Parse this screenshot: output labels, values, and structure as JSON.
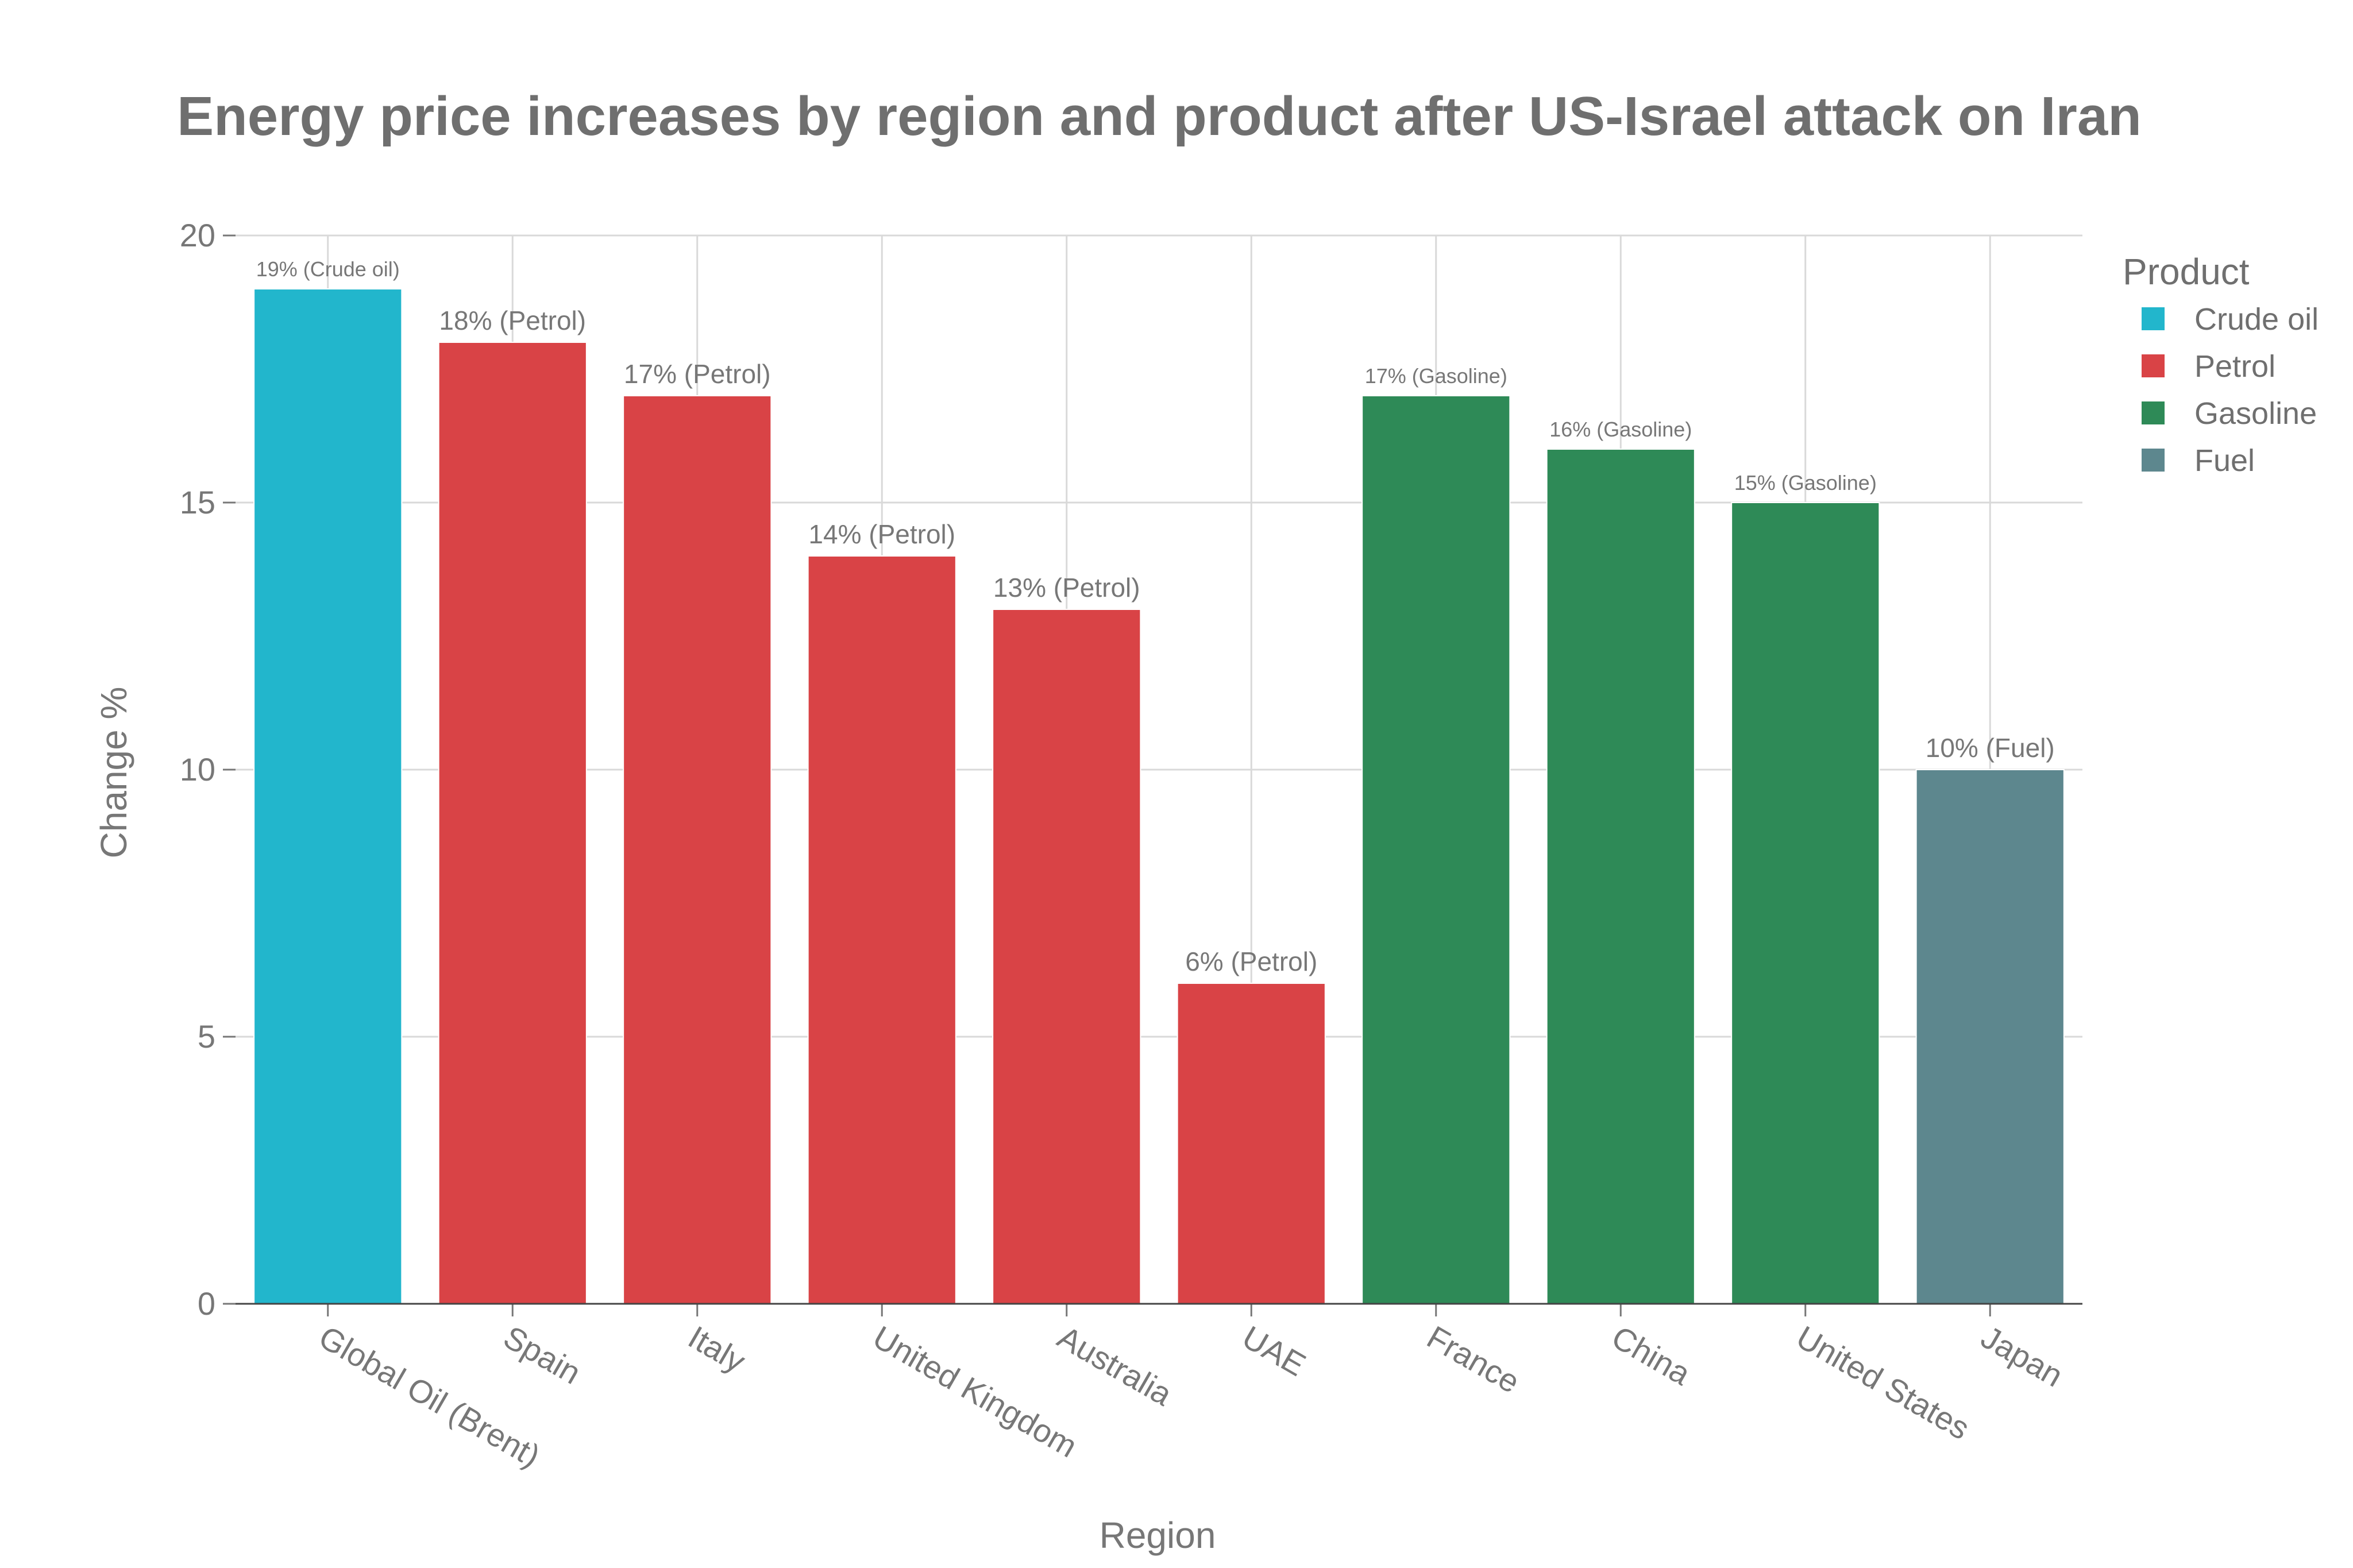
{
  "chart_data": {
    "type": "bar",
    "title": "Energy price increases by region and product after US-Israel attack on Iran",
    "xlabel": "Region",
    "ylabel": "Change %",
    "ylim": [
      0,
      20
    ],
    "yticks": [
      0,
      5,
      10,
      15,
      20
    ],
    "grid": true,
    "legend": {
      "title": "Product",
      "placement": "top-right",
      "entries": [
        {
          "name": "Crude oil",
          "color": "#22b6cc"
        },
        {
          "name": "Petrol",
          "color": "#d94346"
        },
        {
          "name": "Gasoline",
          "color": "#2e8a57"
        },
        {
          "name": "Fuel",
          "color": "#5d878e"
        }
      ]
    },
    "bars": [
      {
        "category": "Global Oil (Brent)",
        "value": 19,
        "product": "Crude oil",
        "label": "19% (Crude oil)",
        "label_size": "sm"
      },
      {
        "category": "Spain",
        "value": 18,
        "product": "Petrol",
        "label": "18% (Petrol)",
        "label_size": "lg"
      },
      {
        "category": "Italy",
        "value": 17,
        "product": "Petrol",
        "label": "17% (Petrol)",
        "label_size": "lg"
      },
      {
        "category": "United Kingdom",
        "value": 14,
        "product": "Petrol",
        "label": "14% (Petrol)",
        "label_size": "lg"
      },
      {
        "category": "Australia",
        "value": 13,
        "product": "Petrol",
        "label": "13% (Petrol)",
        "label_size": "lg"
      },
      {
        "category": "UAE",
        "value": 6,
        "product": "Petrol",
        "label": "6% (Petrol)",
        "label_size": "lg"
      },
      {
        "category": "France",
        "value": 17,
        "product": "Gasoline",
        "label": "17% (Gasoline)",
        "label_size": "sm"
      },
      {
        "category": "China",
        "value": 16,
        "product": "Gasoline",
        "label": "16% (Gasoline)",
        "label_size": "sm"
      },
      {
        "category": "United States",
        "value": 15,
        "product": "Gasoline",
        "label": "15% (Gasoline)",
        "label_size": "sm"
      },
      {
        "category": "Japan",
        "value": 10,
        "product": "Fuel",
        "label": "10% (Fuel)",
        "label_size": "lg"
      }
    ]
  }
}
